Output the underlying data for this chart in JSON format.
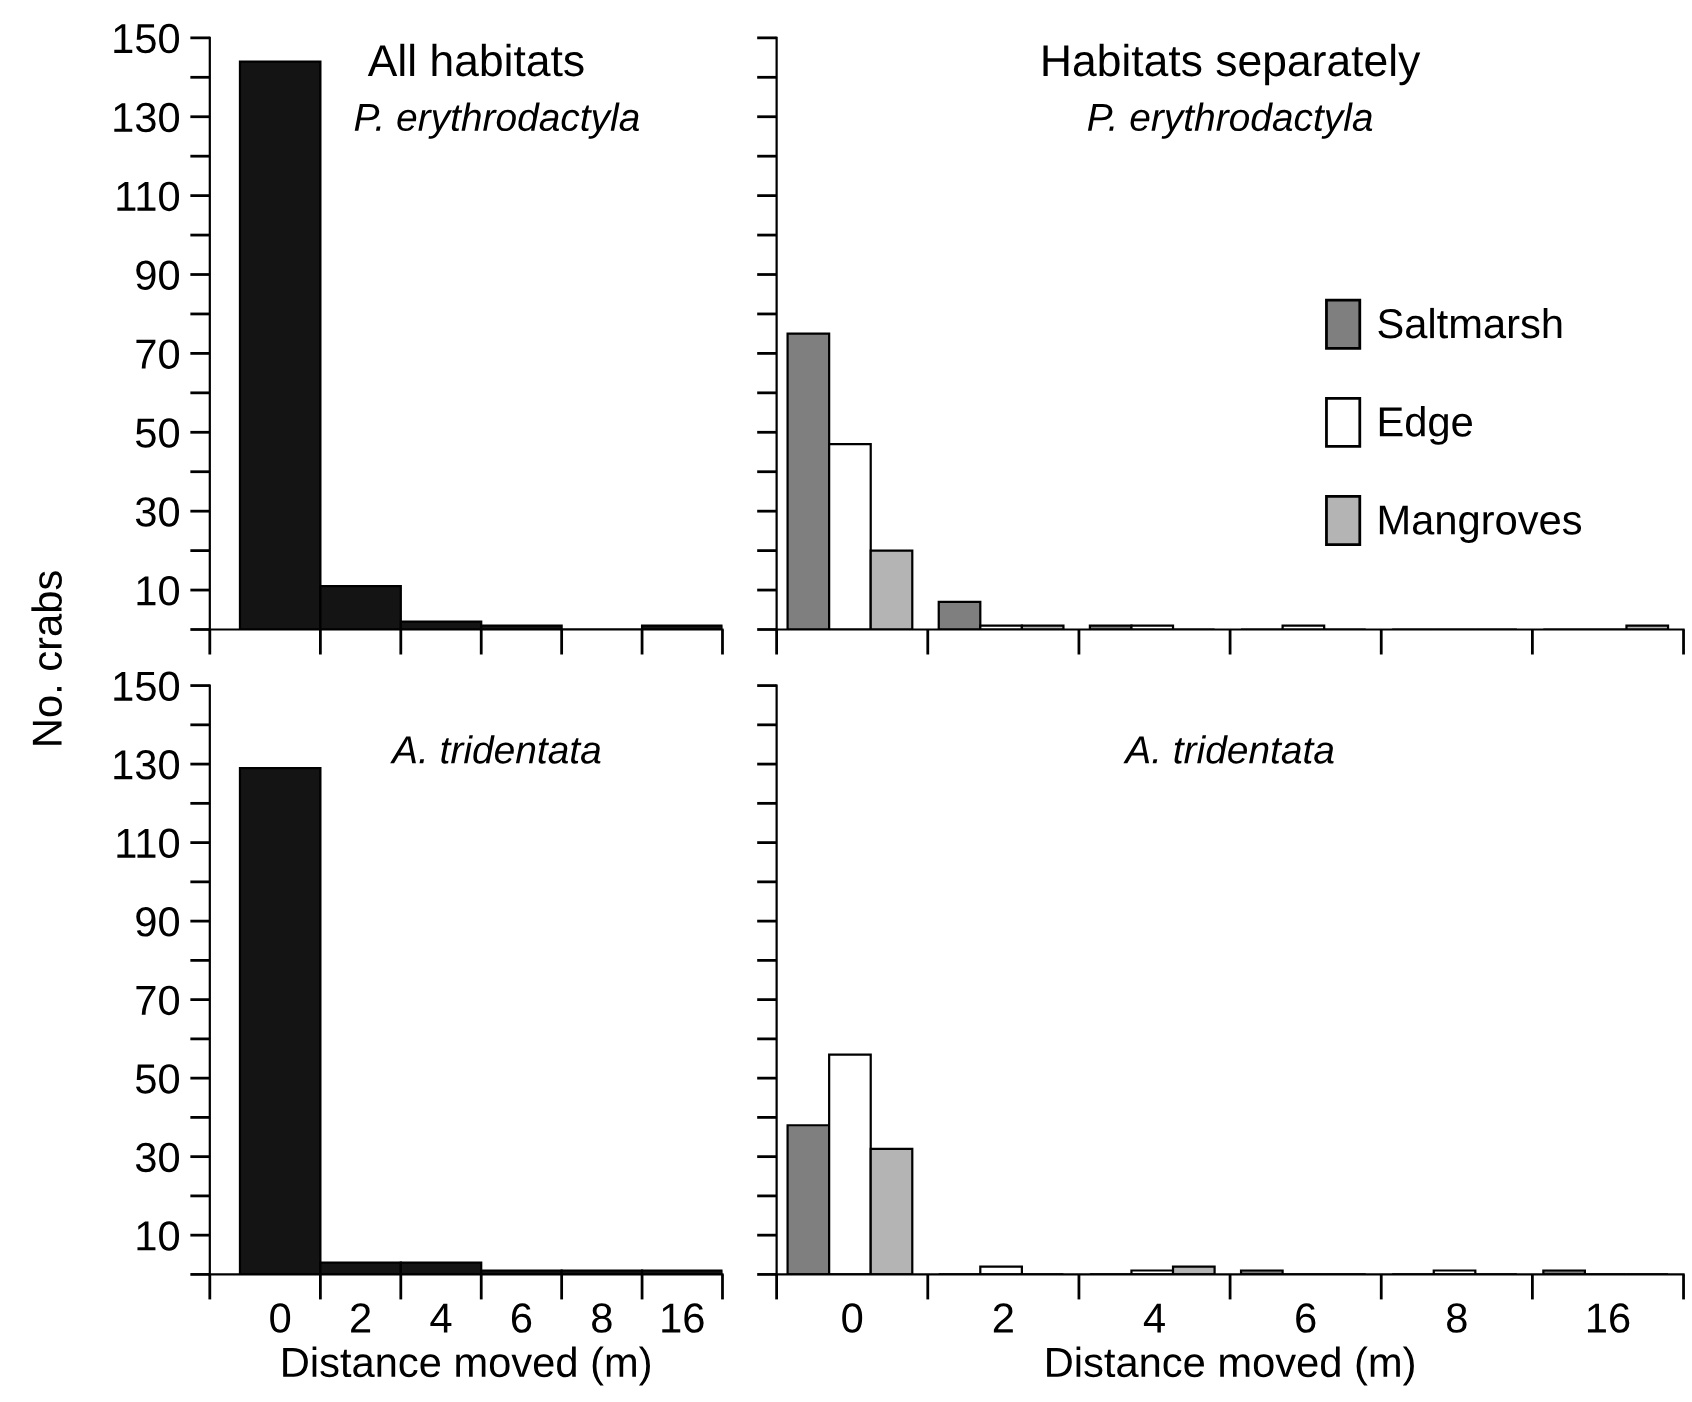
{
  "chart_data": [
    {
      "type": "bar",
      "title": "All habitats",
      "subtitle": "P. erythrodactyla",
      "ylabel": "No. crabs",
      "categories": [
        "0",
        "2",
        "4",
        "6",
        "8",
        "16"
      ],
      "values": [
        144,
        11,
        2,
        1,
        0,
        1
      ],
      "color": "#141414",
      "ylim": [
        0,
        150
      ],
      "yticks": [
        {
          "value": 0,
          "label": null
        },
        10,
        {
          "value": 20,
          "label": null
        },
        30,
        {
          "value": 40,
          "label": null
        },
        50,
        {
          "value": 60,
          "label": null
        },
        70,
        {
          "value": 80,
          "label": null
        },
        90,
        {
          "value": 100,
          "label": null
        },
        110,
        {
          "value": 120,
          "label": null
        },
        130,
        {
          "value": 140,
          "label": null
        },
        150
      ],
      "tick_labels": "y",
      "grid": false,
      "legend": false
    },
    {
      "type": "bar",
      "title": "Habitats separately",
      "subtitle": "P. erythrodactyla",
      "categories": [
        "0",
        "2",
        "4",
        "6",
        "8",
        "16"
      ],
      "series": [
        {
          "name": "Saltmarsh",
          "color": "#7f7f7f",
          "values": [
            75,
            7,
            1,
            0,
            0,
            0
          ]
        },
        {
          "name": "Edge",
          "color": "#ffffff",
          "values": [
            47,
            1,
            1,
            1,
            0,
            0
          ]
        },
        {
          "name": "Mangroves",
          "color": "#b4b4b4",
          "values": [
            20,
            1,
            0,
            0,
            0,
            1
          ]
        }
      ],
      "ylim": [
        0,
        150
      ],
      "yticks": [
        0,
        10,
        20,
        30,
        40,
        50,
        60,
        70,
        80,
        90,
        100,
        110,
        120,
        130,
        140,
        150
      ],
      "tick_labels": false,
      "grid": false,
      "legend": "center right"
    },
    {
      "type": "bar",
      "subtitle": "A. tridentata",
      "xlabel": "Distance moved (m)",
      "categories": [
        "0",
        "2",
        "4",
        "6",
        "8",
        "16"
      ],
      "values": [
        129,
        3,
        3,
        1,
        1,
        1
      ],
      "color": "#141414",
      "ylim": [
        0,
        150
      ],
      "yticks": [
        {
          "value": 0,
          "label": null
        },
        10,
        {
          "value": 20,
          "label": null
        },
        30,
        {
          "value": 40,
          "label": null
        },
        50,
        {
          "value": 60,
          "label": null
        },
        70,
        {
          "value": 80,
          "label": null
        },
        90,
        {
          "value": 100,
          "label": null
        },
        110,
        {
          "value": 120,
          "label": null
        },
        130,
        {
          "value": 140,
          "label": null
        },
        150
      ],
      "grid": false,
      "legend": false
    },
    {
      "type": "bar",
      "subtitle": "A. tridentata",
      "xlabel": "Distance moved (m)",
      "categories": [
        "0",
        "2",
        "4",
        "6",
        "8",
        "16"
      ],
      "series": [
        {
          "color": "#7f7f7f",
          "values": [
            38,
            0,
            0,
            1,
            0,
            1
          ]
        },
        {
          "color": "#ffffff",
          "values": [
            56,
            2,
            1,
            0,
            1,
            0
          ]
        },
        {
          "color": "#b4b4b4",
          "values": [
            32,
            0,
            2,
            0,
            0,
            0
          ]
        }
      ],
      "ylim": [
        0,
        150
      ],
      "yticks": [
        0,
        10,
        20,
        30,
        40,
        50,
        60,
        70,
        80,
        90,
        100,
        110,
        120,
        130,
        140,
        150
      ],
      "tick_labels": "x",
      "grid": false,
      "legend": false
    }
  ]
}
